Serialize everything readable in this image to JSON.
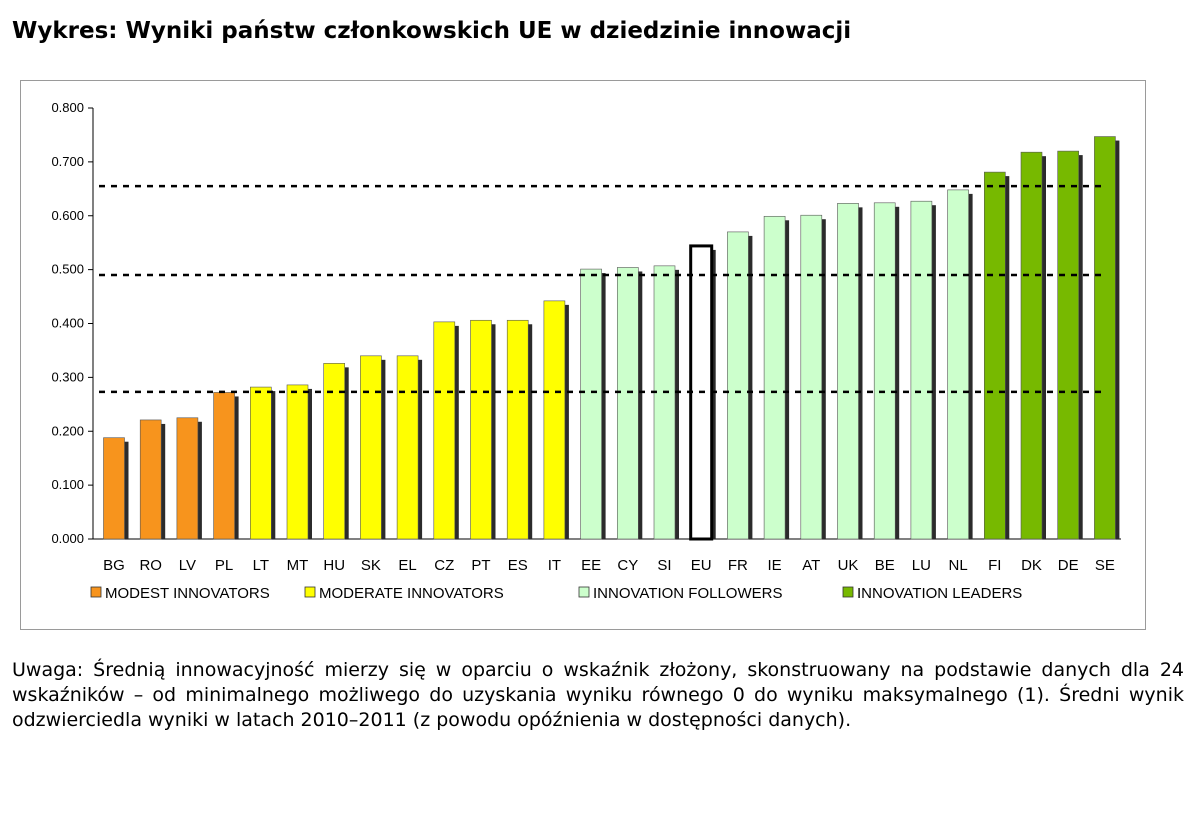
{
  "title": "Wykres: Wyniki państw członkowskich UE w dziedzinie innowacji",
  "note": "Uwaga: Średnią innowacyjność mierzy się w oparciu o wskaźnik złożony, skonstruowany na podstawie danych dla 24 wskaźników – od minimalnego możliwego do uzyskania wyniku równego 0 do wyniku maksymalnego (1). Średni wynik odzwierciedla wyniki w latach 2010–2011 (z powodu opóźnienia w dostępności danych).",
  "chart_data": {
    "type": "bar",
    "title": "",
    "xlabel": "",
    "ylabel": "",
    "ylim": [
      0,
      0.8
    ],
    "yticks": [
      "0.000",
      "0.100",
      "0.200",
      "0.300",
      "0.400",
      "0.500",
      "0.600",
      "0.700",
      "0.800"
    ],
    "grid": false,
    "legend_position": "bottom",
    "categories": [
      "BG",
      "RO",
      "LV",
      "PL",
      "LT",
      "MT",
      "HU",
      "SK",
      "EL",
      "CZ",
      "PT",
      "ES",
      "IT",
      "EE",
      "CY",
      "SI",
      "EU",
      "FR",
      "IE",
      "AT",
      "UK",
      "BE",
      "LU",
      "NL",
      "FI",
      "DK",
      "DE",
      "SE"
    ],
    "values": [
      0.188,
      0.221,
      0.225,
      0.272,
      0.282,
      0.286,
      0.326,
      0.34,
      0.34,
      0.403,
      0.406,
      0.406,
      0.442,
      0.501,
      0.504,
      0.507,
      0.544,
      0.57,
      0.599,
      0.601,
      0.623,
      0.624,
      0.627,
      0.648,
      0.681,
      0.718,
      0.72,
      0.747
    ],
    "groups": [
      "modest",
      "modest",
      "modest",
      "modest",
      "moderate",
      "moderate",
      "moderate",
      "moderate",
      "moderate",
      "moderate",
      "moderate",
      "moderate",
      "moderate",
      "followers",
      "followers",
      "followers",
      "eu",
      "followers",
      "followers",
      "followers",
      "followers",
      "followers",
      "followers",
      "followers",
      "leaders",
      "leaders",
      "leaders",
      "leaders"
    ],
    "thresholds": [
      0.273,
      0.49,
      0.655
    ],
    "legend": [
      {
        "key": "modest",
        "label": "MODEST INNOVATORS",
        "color": "#f7941d"
      },
      {
        "key": "moderate",
        "label": "MODERATE INNOVATORS",
        "color": "#ffff00"
      },
      {
        "key": "followers",
        "label": "INNOVATION FOLLOWERS",
        "color": "#ccffcc"
      },
      {
        "key": "leaders",
        "label": "INNOVATION LEADERS",
        "color": "#77b900"
      }
    ],
    "eu_bar": {
      "fill": "#ffffff",
      "stroke": "#000000"
    }
  }
}
